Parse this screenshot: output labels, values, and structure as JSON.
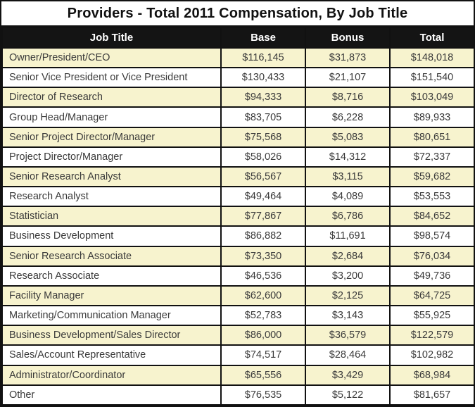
{
  "title": "Providers - Total 2011 Compensation, By Job Title",
  "colors": {
    "header_bg": "#141414",
    "header_text": "#ffffff",
    "row_highlight": "#f7f3ce",
    "row_plain": "#ffffff",
    "border": "#111111",
    "body_text": "#3a3a3a"
  },
  "chart_data": {
    "type": "table",
    "title": "Providers - Total 2011 Compensation, By Job Title",
    "columns": [
      "Job Title",
      "Base",
      "Bonus",
      "Total"
    ],
    "rows": [
      [
        "Owner/President/CEO",
        "$116,145",
        "$31,873",
        "$148,018"
      ],
      [
        "Senior Vice President or Vice President",
        "$130,433",
        "$21,107",
        "$151,540"
      ],
      [
        "Director of Research",
        "$94,333",
        "$8,716",
        "$103,049"
      ],
      [
        "Group Head/Manager",
        "$83,705",
        "$6,228",
        "$89,933"
      ],
      [
        "Senior Project Director/Manager",
        "$75,568",
        "$5,083",
        "$80,651"
      ],
      [
        "Project Director/Manager",
        "$58,026",
        "$14,312",
        "$72,337"
      ],
      [
        "Senior Research Analyst",
        "$56,567",
        "$3,115",
        "$59,682"
      ],
      [
        "Research Analyst",
        "$49,464",
        "$4,089",
        "$53,553"
      ],
      [
        "Statistician",
        "$77,867",
        "$6,786",
        "$84,652"
      ],
      [
        "Business Development",
        "$86,882",
        "$11,691",
        "$98,574"
      ],
      [
        "Senior Research Associate",
        "$73,350",
        "$2,684",
        "$76,034"
      ],
      [
        "Research Associate",
        "$46,536",
        "$3,200",
        "$49,736"
      ],
      [
        "Facility Manager",
        "$62,600",
        "$2,125",
        "$64,725"
      ],
      [
        "Marketing/Communication Manager",
        "$52,783",
        "$3,143",
        "$55,925"
      ],
      [
        "Business Development/Sales Director",
        "$86,000",
        "$36,579",
        "$122,579"
      ],
      [
        "Sales/Account Representative",
        "$74,517",
        "$28,464",
        "$102,982"
      ],
      [
        "Administrator/Coordinator",
        "$65,556",
        "$3,429",
        "$68,984"
      ],
      [
        "Other",
        "$76,535",
        "$5,122",
        "$81,657"
      ]
    ]
  }
}
